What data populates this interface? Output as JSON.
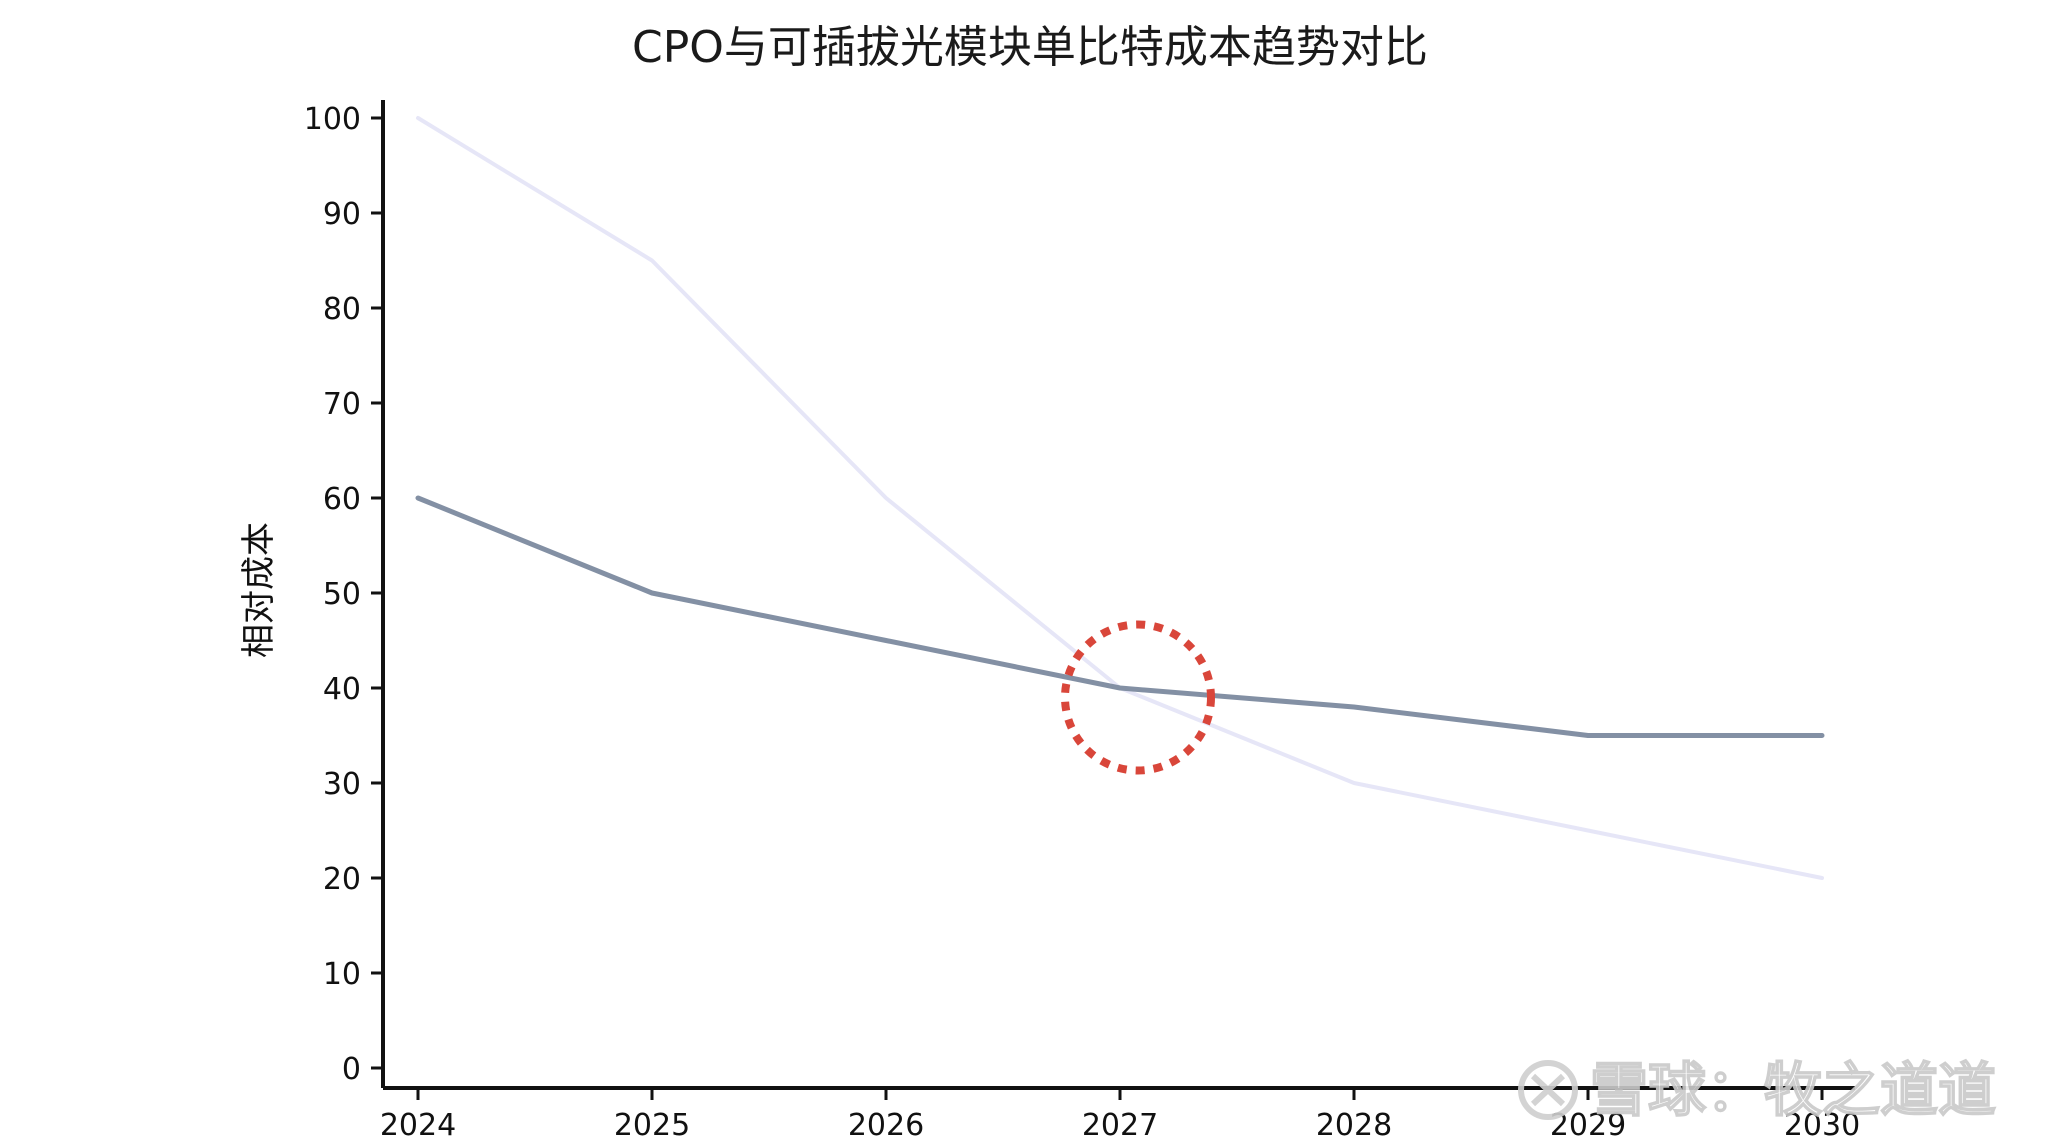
{
  "chart_data": {
    "type": "line",
    "title": "CPO与可插拔光模块单比特成本趋势对比",
    "xlabel": "",
    "ylabel": "相对成本",
    "x": [
      "2024",
      "2025",
      "2026",
      "2027",
      "2028",
      "2029",
      "2030"
    ],
    "series": [
      {
        "values": [
          60,
          50,
          45,
          40,
          38,
          35,
          35
        ],
        "color": "#8390a4"
      },
      {
        "values": [
          100,
          85,
          60,
          40,
          30,
          25,
          20
        ],
        "color": "#e6e6f7"
      }
    ],
    "ylim": [
      0,
      100
    ],
    "yticks": [
      "0",
      "10",
      "20",
      "30",
      "40",
      "50",
      "60",
      "70",
      "80",
      "90",
      "100"
    ],
    "grid": false,
    "legend": "none",
    "annotation": {
      "type": "dotted-circle",
      "x": "2027",
      "y": 39,
      "color": "#d9463a"
    }
  },
  "watermark": {
    "icon": "xueqiu-logo-icon",
    "text": "雪球：牧之道道"
  }
}
